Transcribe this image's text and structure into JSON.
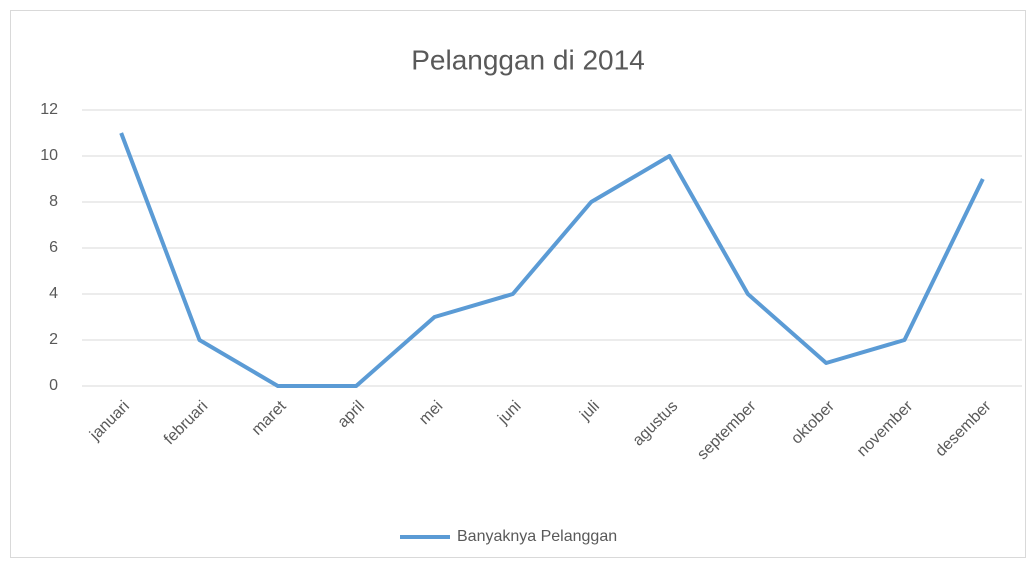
{
  "chart_data": {
    "type": "line",
    "title": "Pelanggan di 2014",
    "categories": [
      "januari",
      "februari",
      "maret",
      "april",
      "mei",
      "juni",
      "juli",
      "agustus",
      "september",
      "oktober",
      "november",
      "desember"
    ],
    "series": [
      {
        "name": "Banyaknya Pelanggan",
        "color": "#5b9bd5",
        "values": [
          11,
          2,
          0,
          0,
          3,
          4,
          8,
          10,
          4,
          1,
          2,
          9
        ]
      }
    ],
    "ylim": [
      0,
      12
    ],
    "yticks": [
      0,
      2,
      4,
      6,
      8,
      10,
      12
    ],
    "grid": true,
    "legend": "bottom"
  }
}
